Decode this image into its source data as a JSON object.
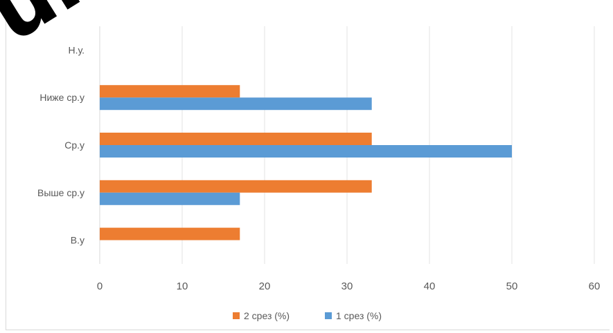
{
  "watermark": {
    "text": "uke"
  },
  "chart_data": {
    "type": "bar",
    "orientation": "horizontal",
    "title": "",
    "xlabel": "",
    "ylabel": "",
    "categories": [
      "Н.у.",
      "Ниже ср.у",
      "Ср.у",
      "Выше ср.у",
      "В.у"
    ],
    "xlim": [
      0,
      60
    ],
    "x_ticks": [
      0,
      10,
      20,
      30,
      40,
      50,
      60
    ],
    "grid": true,
    "legend": "bottom",
    "series": [
      {
        "name": "2 срез (%)",
        "color": "#ED7D31",
        "values": [
          0,
          17,
          33,
          33,
          17
        ]
      },
      {
        "name": "1 срез  (%)",
        "color": "#5B9BD5",
        "values": [
          0,
          33,
          50,
          17,
          0
        ]
      }
    ]
  }
}
